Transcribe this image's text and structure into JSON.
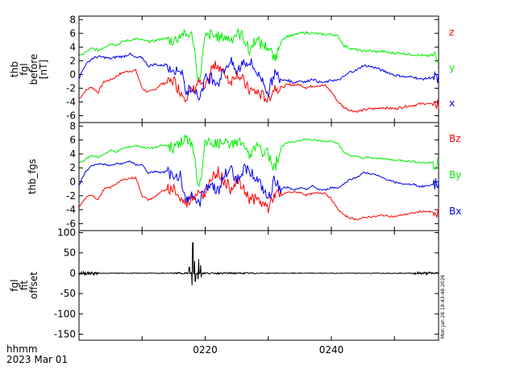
{
  "footer": {
    "time_label": "hhmm",
    "date_label": "2023 Mar 01",
    "timestamp": "Mon Jan 26 18:43:48 2026"
  },
  "chart_data": [
    {
      "type": "line",
      "ylabel": [
        "thb",
        "fgl",
        "before",
        "[nT]"
      ],
      "x_range_min": [
        0,
        57
      ],
      "ylim": [
        -7,
        8.5
      ],
      "yticks": [
        8,
        6,
        4,
        2,
        0,
        -2,
        -4,
        -6
      ],
      "series": [
        {
          "name": "z",
          "color": "#ff0000",
          "label_pos": "top",
          "keypoints": [
            [
              0,
              -3.6
            ],
            [
              1,
              -2.4
            ],
            [
              2,
              -1.8
            ],
            [
              3,
              -2.6
            ],
            [
              4,
              -1.0
            ],
            [
              5,
              -0.8
            ],
            [
              6,
              -0.2
            ],
            [
              7,
              0.3
            ],
            [
              8,
              0.5
            ],
            [
              9,
              0.6
            ],
            [
              10,
              -2.0
            ],
            [
              11,
              -2.6
            ],
            [
              12,
              -2.2
            ],
            [
              13,
              -1.4
            ],
            [
              14,
              -1.2
            ],
            [
              15,
              -0.8
            ],
            [
              16,
              -2.4
            ],
            [
              17,
              -3.2
            ],
            [
              18,
              -2.2
            ],
            [
              19,
              -1.0
            ],
            [
              20,
              -2.4
            ],
            [
              21,
              0.8
            ],
            [
              22,
              1.5
            ],
            [
              23,
              0.2
            ],
            [
              24,
              -1.0
            ],
            [
              25,
              0.3
            ],
            [
              26,
              -0.9
            ],
            [
              27,
              -2.3
            ],
            [
              28,
              -2.5
            ],
            [
              29,
              -3.0
            ],
            [
              30,
              -3.7
            ],
            [
              31,
              -1.8
            ],
            [
              32,
              -2.0
            ],
            [
              33,
              -1.5
            ],
            [
              34,
              -1.5
            ],
            [
              35,
              -1.5
            ],
            [
              36,
              -1.9
            ],
            [
              37,
              -1.7
            ],
            [
              38,
              -1.6
            ],
            [
              39,
              -1.6
            ],
            [
              40,
              -2.5
            ],
            [
              41,
              -3.9
            ],
            [
              42,
              -4.8
            ],
            [
              43,
              -5.2
            ],
            [
              44,
              -5.4
            ],
            [
              45,
              -5.2
            ],
            [
              46,
              -5.0
            ],
            [
              47,
              -5.0
            ],
            [
              48,
              -4.8
            ],
            [
              49,
              -4.9
            ],
            [
              50,
              -5.0
            ],
            [
              51,
              -4.8
            ],
            [
              52,
              -4.6
            ],
            [
              53,
              -4.5
            ],
            [
              54,
              -4.3
            ],
            [
              55,
              -4.2
            ],
            [
              56,
              -4.4
            ],
            [
              57,
              -4.6
            ]
          ]
        },
        {
          "name": "y",
          "color": "#00ee00",
          "label_pos": "middle",
          "keypoints": [
            [
              0,
              2.6
            ],
            [
              1,
              3.2
            ],
            [
              2,
              3.8
            ],
            [
              3,
              3.5
            ],
            [
              4,
              4.0
            ],
            [
              5,
              4.5
            ],
            [
              6,
              4.3
            ],
            [
              7,
              4.8
            ],
            [
              8,
              5.0
            ],
            [
              9,
              5.2
            ],
            [
              10,
              5.0
            ],
            [
              11,
              4.8
            ],
            [
              12,
              4.9
            ],
            [
              13,
              5.2
            ],
            [
              14,
              5.2
            ],
            [
              15,
              4.8
            ],
            [
              16,
              5.8
            ],
            [
              17,
              5.9
            ],
            [
              18,
              5.6
            ],
            [
              19,
              -1.5
            ],
            [
              20,
              5.5
            ],
            [
              21,
              5.8
            ],
            [
              22,
              5.4
            ],
            [
              23,
              5.5
            ],
            [
              24,
              5.2
            ],
            [
              25,
              5.9
            ],
            [
              26,
              5.6
            ],
            [
              27,
              3.3
            ],
            [
              28,
              5.2
            ],
            [
              29,
              4.3
            ],
            [
              30,
              4.0
            ],
            [
              31,
              2.0
            ],
            [
              32,
              5.0
            ],
            [
              33,
              5.6
            ],
            [
              34,
              5.7
            ],
            [
              35,
              6.0
            ],
            [
              36,
              6.1
            ],
            [
              37,
              6.0
            ],
            [
              38,
              5.9
            ],
            [
              39,
              5.8
            ],
            [
              40,
              5.9
            ],
            [
              41,
              5.6
            ],
            [
              42,
              4.2
            ],
            [
              43,
              3.8
            ],
            [
              44,
              3.6
            ],
            [
              45,
              3.4
            ],
            [
              46,
              3.5
            ],
            [
              47,
              3.3
            ],
            [
              48,
              3.4
            ],
            [
              49,
              3.2
            ],
            [
              50,
              3.1
            ],
            [
              51,
              3.1
            ],
            [
              52,
              3.0
            ],
            [
              53,
              2.9
            ],
            [
              54,
              2.8
            ],
            [
              55,
              2.7
            ],
            [
              56,
              2.8
            ],
            [
              57,
              2.6
            ]
          ]
        },
        {
          "name": "x",
          "color": "#0000ee",
          "label_pos": "bottom",
          "keypoints": [
            [
              0,
              -0.5
            ],
            [
              1,
              1.4
            ],
            [
              2,
              2.3
            ],
            [
              3,
              2.6
            ],
            [
              4,
              2.5
            ],
            [
              5,
              2.3
            ],
            [
              6,
              2.6
            ],
            [
              7,
              2.6
            ],
            [
              8,
              3.0
            ],
            [
              9,
              2.4
            ],
            [
              10,
              2.5
            ],
            [
              11,
              1.2
            ],
            [
              12,
              1.5
            ],
            [
              13,
              1.3
            ],
            [
              14,
              1.5
            ],
            [
              15,
              0.3
            ],
            [
              16,
              1.2
            ],
            [
              17,
              -2.8
            ],
            [
              18,
              -1.6
            ],
            [
              19,
              -3.5
            ],
            [
              20,
              -0.6
            ],
            [
              21,
              -0.4
            ],
            [
              22,
              -1.3
            ],
            [
              23,
              0.8
            ],
            [
              24,
              1.9
            ],
            [
              25,
              0.3
            ],
            [
              26,
              1.8
            ],
            [
              27,
              1.8
            ],
            [
              28,
              0.6
            ],
            [
              29,
              -0.8
            ],
            [
              30,
              -2.6
            ],
            [
              31,
              0.3
            ],
            [
              32,
              -0.9
            ],
            [
              33,
              -0.8
            ],
            [
              34,
              -1.2
            ],
            [
              35,
              -0.9
            ],
            [
              36,
              -1.1
            ],
            [
              37,
              -0.6
            ],
            [
              38,
              -1.1
            ],
            [
              39,
              -1.2
            ],
            [
              40,
              -0.8
            ],
            [
              41,
              -0.9
            ],
            [
              42,
              -0.3
            ],
            [
              43,
              0.4
            ],
            [
              44,
              0.6
            ],
            [
              45,
              1.3
            ],
            [
              46,
              1.2
            ],
            [
              47,
              1.0
            ],
            [
              48,
              0.6
            ],
            [
              49,
              0.3
            ],
            [
              50,
              -0.1
            ],
            [
              51,
              -0.2
            ],
            [
              52,
              -0.4
            ],
            [
              53,
              -0.3
            ],
            [
              54,
              -0.7
            ],
            [
              55,
              -0.6
            ],
            [
              56,
              -0.4
            ],
            [
              57,
              -0.5
            ]
          ]
        }
      ]
    },
    {
      "type": "line",
      "ylabel": [
        "thb_fgs"
      ],
      "x_range_min": [
        0,
        57
      ],
      "ylim": [
        -7,
        8.5
      ],
      "yticks": [
        8,
        6,
        4,
        2,
        0,
        -2,
        -4,
        -6
      ],
      "series": [
        {
          "name": "Bz",
          "color": "#ff0000",
          "label_pos": "top",
          "like": "z"
        },
        {
          "name": "By",
          "color": "#00ee00",
          "label_pos": "middle",
          "like": "y"
        },
        {
          "name": "Bx",
          "color": "#0000ee",
          "label_pos": "bottom",
          "like": "x"
        }
      ]
    },
    {
      "type": "line",
      "ylabel": [
        "fgl",
        "fit",
        "offset"
      ],
      "x_range_min": [
        0,
        57
      ],
      "ylim": [
        -165,
        105
      ],
      "yticks": [
        100,
        50,
        0,
        -50,
        -100,
        -150
      ],
      "xticks_min": [
        20,
        40
      ],
      "xtick_labels": [
        "0220",
        "0240"
      ],
      "series": [
        {
          "name": "offset",
          "color": "#000000",
          "spikes_min": [
            [
              18.0,
              75,
              -30
            ],
            [
              18.4,
              30,
              -20
            ],
            [
              18.9,
              35,
              -15
            ],
            [
              17.5,
              15,
              -25
            ],
            [
              19.3,
              20,
              -10
            ]
          ]
        }
      ]
    }
  ]
}
